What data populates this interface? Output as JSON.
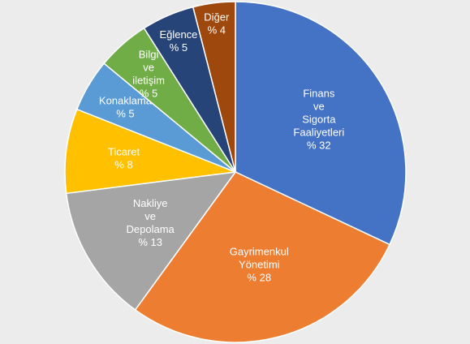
{
  "chart_data": {
    "type": "pie",
    "title": "",
    "unit_prefix": "% ",
    "slices": [
      {
        "label_lines": [
          "Finans",
          "ve",
          "Sigorta",
          "Faaliyetleri"
        ],
        "value": 32,
        "color": "#4472c4"
      },
      {
        "label_lines": [
          "Gayrimenkul",
          "Yönetimi"
        ],
        "value": 28,
        "color": "#ed7d31"
      },
      {
        "label_lines": [
          "Nakliye",
          "ve",
          "Depolama"
        ],
        "value": 13,
        "color": "#a5a5a5"
      },
      {
        "label_lines": [
          "Ticaret"
        ],
        "value": 8,
        "color": "#ffc000"
      },
      {
        "label_lines": [
          "Konaklama"
        ],
        "value": 5,
        "color": "#5b9bd5"
      },
      {
        "label_lines": [
          "Bilgi",
          "ve",
          "iletişim"
        ],
        "value": 5,
        "color": "#70ad47"
      },
      {
        "label_lines": [
          "Eğlence"
        ],
        "value": 5,
        "color": "#264478"
      },
      {
        "label_lines": [
          "Diğer"
        ],
        "value": 4,
        "color": "#9e480e"
      }
    ],
    "start_angle_deg": 0,
    "direction": "clockwise",
    "legend": "none"
  }
}
